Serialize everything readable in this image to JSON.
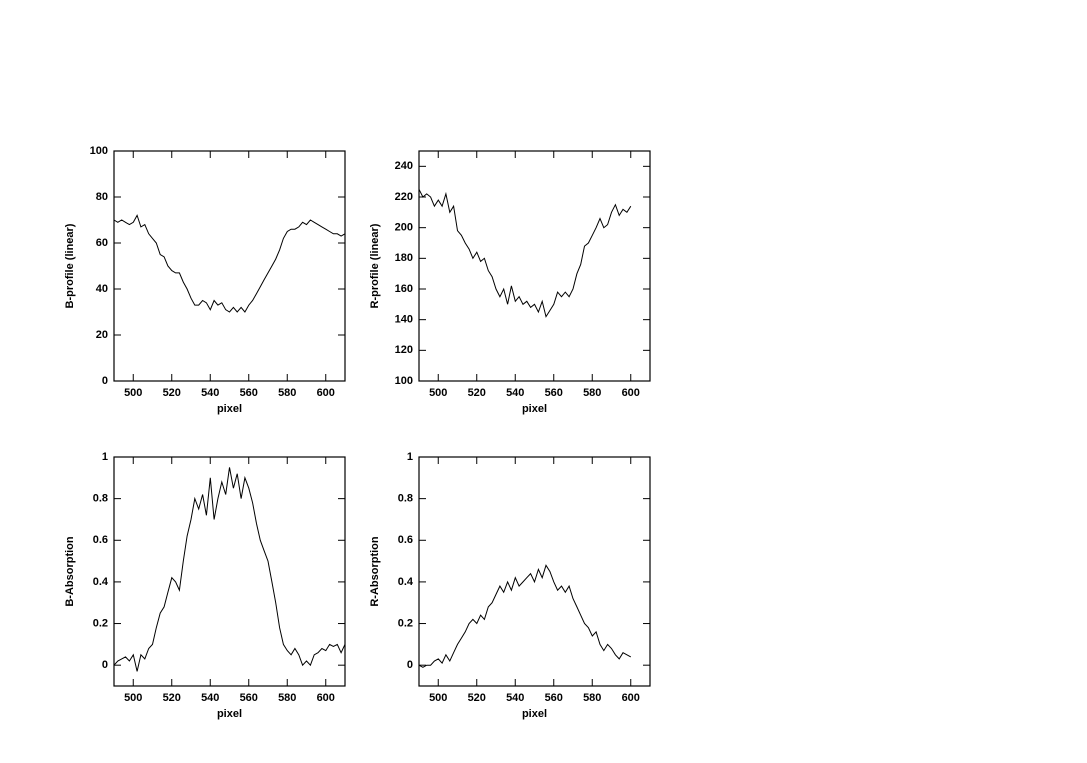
{
  "chart_data": [
    {
      "type": "line",
      "xlabel": "pixel",
      "ylabel": "B-profile (linear)",
      "color": "#000000",
      "xlim": [
        490,
        610
      ],
      "ylim": [
        0,
        100
      ],
      "xticks": [
        500,
        520,
        540,
        560,
        580,
        600
      ],
      "yticks": [
        0,
        20,
        40,
        60,
        80,
        100
      ],
      "x": [
        490,
        492,
        494,
        496,
        498,
        500,
        502,
        504,
        506,
        508,
        510,
        512,
        514,
        516,
        518,
        520,
        522,
        524,
        526,
        528,
        530,
        532,
        534,
        536,
        538,
        540,
        542,
        544,
        546,
        548,
        550,
        552,
        554,
        556,
        558,
        560,
        562,
        564,
        566,
        568,
        570,
        572,
        574,
        576,
        578,
        580,
        582,
        584,
        586,
        588,
        590,
        592,
        594,
        596,
        598,
        600,
        602,
        604,
        606,
        608,
        610
      ],
      "values": [
        70,
        69,
        70,
        69,
        68,
        69,
        72,
        67,
        68,
        64,
        62,
        60,
        55,
        54,
        50,
        48,
        47,
        47,
        43,
        40,
        36,
        33,
        33,
        35,
        34,
        31,
        35,
        33,
        34,
        31,
        30,
        32,
        30,
        32,
        30,
        33,
        35,
        38,
        41,
        44,
        47,
        50,
        53,
        57,
        62,
        65,
        66,
        66,
        67,
        69,
        68,
        70,
        69,
        68,
        67,
        66,
        65,
        64,
        64,
        63,
        64
      ]
    },
    {
      "type": "line",
      "xlabel": "pixel",
      "ylabel": "R-profile (linear)",
      "color": "#000000",
      "xlim": [
        490,
        610
      ],
      "ylim": [
        100,
        250
      ],
      "xticks": [
        500,
        520,
        540,
        560,
        580,
        600
      ],
      "yticks": [
        100,
        120,
        140,
        160,
        180,
        200,
        220,
        240
      ],
      "x": [
        490,
        492,
        494,
        496,
        498,
        500,
        502,
        504,
        506,
        508,
        510,
        512,
        514,
        516,
        518,
        520,
        522,
        524,
        526,
        528,
        530,
        532,
        534,
        536,
        538,
        540,
        542,
        544,
        546,
        548,
        550,
        552,
        554,
        556,
        558,
        560,
        562,
        564,
        566,
        568,
        570,
        572,
        574,
        576,
        578,
        580,
        582,
        584,
        586,
        588,
        590,
        592,
        594,
        596,
        598,
        600
      ],
      "values": [
        225,
        220,
        222,
        220,
        214,
        218,
        214,
        222,
        210,
        214,
        198,
        195,
        190,
        186,
        180,
        184,
        178,
        180,
        172,
        168,
        160,
        155,
        160,
        150,
        162,
        152,
        155,
        150,
        152,
        148,
        150,
        145,
        152,
        142,
        146,
        150,
        158,
        155,
        158,
        155,
        160,
        170,
        176,
        188,
        190,
        195,
        200,
        206,
        200,
        202,
        210,
        215,
        208,
        212,
        210,
        214
      ]
    },
    {
      "type": "line",
      "xlabel": "pixel",
      "ylabel": "B-Absorption",
      "color": "#000000",
      "xlim": [
        490,
        610
      ],
      "ylim": [
        -0.1,
        1
      ],
      "xticks": [
        500,
        520,
        540,
        560,
        580,
        600
      ],
      "yticks": [
        0,
        0.2,
        0.4,
        0.6,
        0.8,
        1
      ],
      "x": [
        490,
        492,
        494,
        496,
        498,
        500,
        502,
        504,
        506,
        508,
        510,
        512,
        514,
        516,
        518,
        520,
        522,
        524,
        526,
        528,
        530,
        532,
        534,
        536,
        538,
        540,
        542,
        544,
        546,
        548,
        550,
        552,
        554,
        556,
        558,
        560,
        562,
        564,
        566,
        568,
        570,
        572,
        574,
        576,
        578,
        580,
        582,
        584,
        586,
        588,
        590,
        592,
        594,
        596,
        598,
        600,
        602,
        604,
        606,
        608,
        610
      ],
      "values": [
        0.0,
        0.02,
        0.03,
        0.04,
        0.02,
        0.05,
        -0.03,
        0.05,
        0.03,
        0.08,
        0.1,
        0.18,
        0.25,
        0.28,
        0.35,
        0.42,
        0.4,
        0.36,
        0.5,
        0.62,
        0.7,
        0.8,
        0.75,
        0.82,
        0.72,
        0.9,
        0.7,
        0.8,
        0.88,
        0.82,
        0.95,
        0.85,
        0.92,
        0.8,
        0.9,
        0.85,
        0.78,
        0.68,
        0.6,
        0.55,
        0.5,
        0.4,
        0.3,
        0.18,
        0.1,
        0.07,
        0.05,
        0.08,
        0.05,
        0.0,
        0.02,
        0.0,
        0.05,
        0.06,
        0.08,
        0.07,
        0.1,
        0.09,
        0.1,
        0.06,
        0.1
      ]
    },
    {
      "type": "line",
      "xlabel": "pixel",
      "ylabel": "R-Absorption",
      "color": "#000000",
      "xlim": [
        490,
        610
      ],
      "ylim": [
        -0.1,
        1
      ],
      "xticks": [
        500,
        520,
        540,
        560,
        580,
        600
      ],
      "yticks": [
        0,
        0.2,
        0.4,
        0.6,
        0.8,
        1
      ],
      "x": [
        490,
        492,
        494,
        496,
        498,
        500,
        502,
        504,
        506,
        508,
        510,
        512,
        514,
        516,
        518,
        520,
        522,
        524,
        526,
        528,
        530,
        532,
        534,
        536,
        538,
        540,
        542,
        544,
        546,
        548,
        550,
        552,
        554,
        556,
        558,
        560,
        562,
        564,
        566,
        568,
        570,
        572,
        574,
        576,
        578,
        580,
        582,
        584,
        586,
        588,
        590,
        592,
        594,
        596,
        598,
        600
      ],
      "values": [
        0.0,
        -0.01,
        0.0,
        0.0,
        0.02,
        0.03,
        0.01,
        0.05,
        0.02,
        0.06,
        0.1,
        0.13,
        0.16,
        0.2,
        0.22,
        0.2,
        0.24,
        0.22,
        0.28,
        0.3,
        0.34,
        0.38,
        0.35,
        0.4,
        0.36,
        0.42,
        0.38,
        0.4,
        0.42,
        0.44,
        0.4,
        0.46,
        0.42,
        0.48,
        0.45,
        0.4,
        0.36,
        0.38,
        0.35,
        0.38,
        0.32,
        0.28,
        0.24,
        0.2,
        0.18,
        0.14,
        0.16,
        0.1,
        0.07,
        0.1,
        0.08,
        0.05,
        0.03,
        0.06,
        0.05,
        0.04
      ]
    }
  ]
}
